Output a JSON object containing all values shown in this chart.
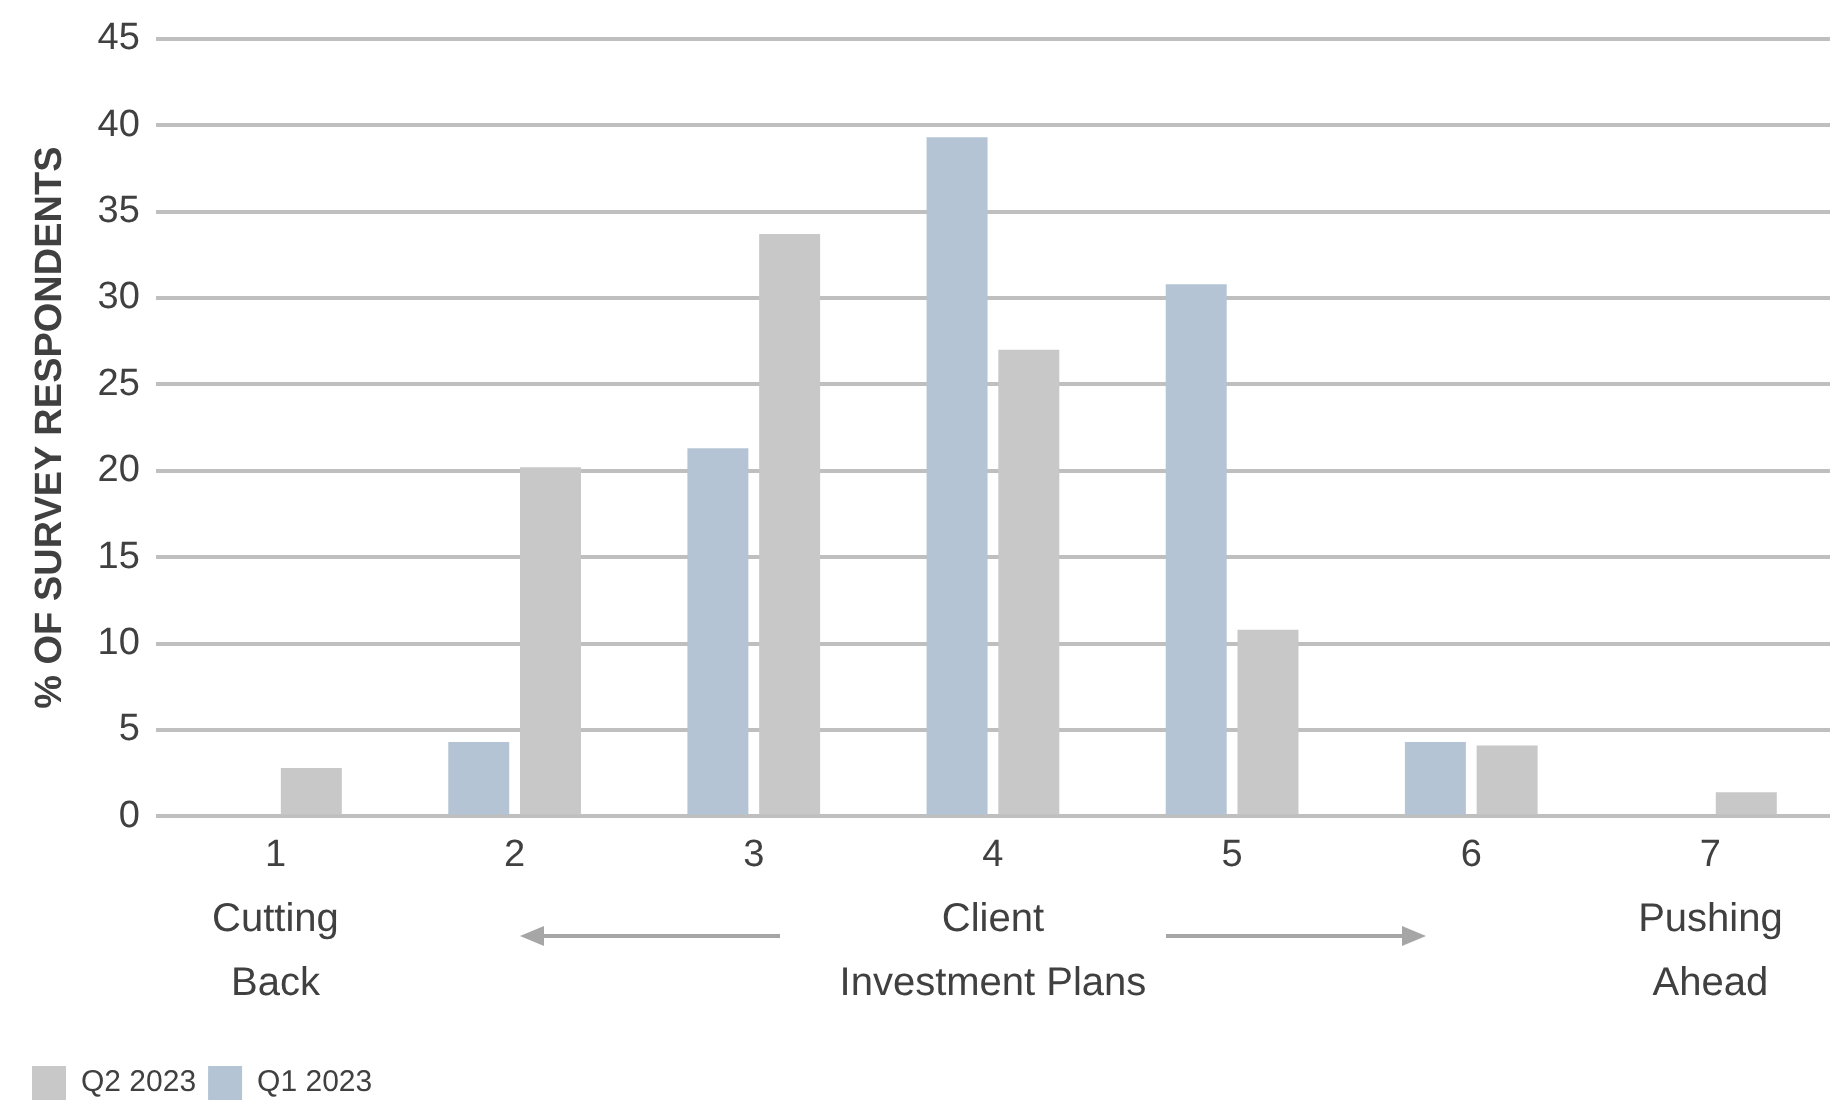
{
  "chart_data": {
    "type": "bar",
    "ylabel": "% OF SURVEY RESPONDENTS",
    "categories": [
      "1",
      "2",
      "3",
      "4",
      "5",
      "6",
      "7"
    ],
    "series": [
      {
        "name": "Q1 2023",
        "color": "#b4c4d4",
        "values": [
          0,
          4.3,
          21.3,
          39.3,
          30.8,
          4.3,
          0
        ]
      },
      {
        "name": "Q2 2023",
        "color": "#c8c8c8",
        "values": [
          2.8,
          20.2,
          33.7,
          27,
          10.8,
          4.1,
          1.4
        ]
      }
    ],
    "ylim": [
      0,
      45
    ],
    "yticks": [
      0,
      5,
      10,
      15,
      20,
      25,
      30,
      35,
      40,
      45
    ],
    "grid": "y",
    "legend": "bottom left",
    "annotations": [
      "Cutting Back",
      "Client Investment Plans",
      "Pushing Ahead"
    ]
  }
}
